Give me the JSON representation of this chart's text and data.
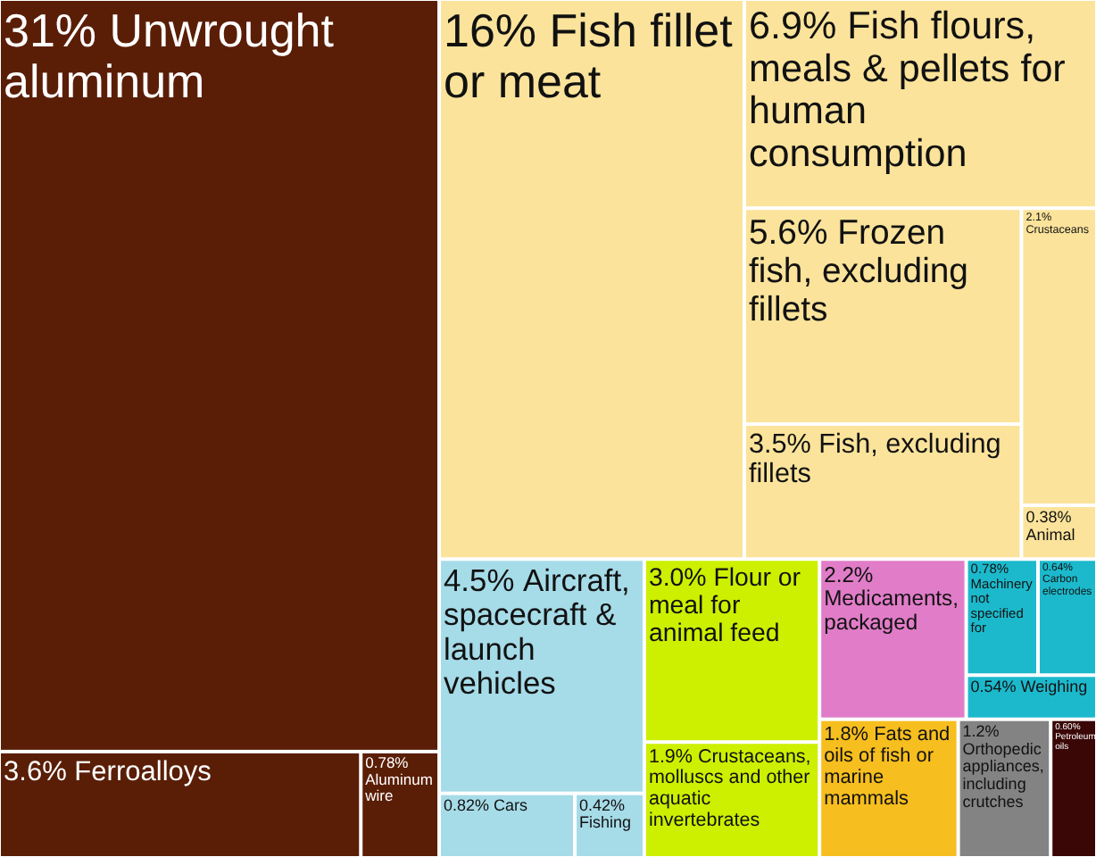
{
  "chart_data": {
    "type": "other",
    "categories": [
      "Fish fillet or meat",
      "Fish flours, meals & pellets for human consumption",
      "Frozen fish, excluding fillets",
      "Fish, excluding fillets",
      "Crustaceans",
      "Animal",
      "Flour or meal for animal feed",
      "Crustaceans, molluscs and other aquatic invertebrates",
      "Fats and oils of fish or marine mammals",
      "Aircraft, spacecraft & launch vehicles",
      "Cars",
      "Fishing",
      "Machinery not specified for",
      "Carbon electrodes",
      "Weighing",
      "Unwrought aluminum",
      "Ferroalloys",
      "Aluminum wire",
      "Medicaments, packaged",
      "Orthopedic appliances, including crutches",
      "Petroleum oils"
    ],
    "values": [
      16,
      6.9,
      5.6,
      3.5,
      2.1,
      0.38,
      3.0,
      1.9,
      1.8,
      4.5,
      0.82,
      0.42,
      0.78,
      0.64,
      0.54,
      31,
      3.6,
      0.78,
      2.2,
      1.2,
      0.6
    ],
    "value_labels": [
      "16%",
      "6.9%",
      "5.6%",
      "3.5%",
      "2.1%",
      "0.38%",
      "3.0%",
      "1.9%",
      "1.8%",
      "4.5%",
      "0.82%",
      "0.42%",
      "0.78%",
      "0.64%",
      "0.54%",
      "31%",
      "3.6%",
      "0.78%",
      "2.2%",
      "1.2%",
      "0.60%"
    ],
    "colors": [
      "#fbe39b",
      "#fbe39b",
      "#fbe39b",
      "#fbe39b",
      "#fbe39b",
      "#fbe39b",
      "#ccf000",
      "#ccf000",
      "#f6be1e",
      "#a6dbe8",
      "#a6dbe8",
      "#a6dbe8",
      "#1cb9cc",
      "#1cb9cc",
      "#1cb9cc",
      "#5a1e06",
      "#5a1e06",
      "#5a1e06",
      "#e07cc8",
      "#838383",
      "#3a0606"
    ]
  }
}
